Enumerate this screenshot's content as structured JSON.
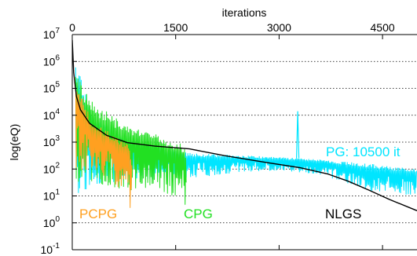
{
  "chart_data": {
    "type": "line",
    "title": "",
    "xlabel": "iterations",
    "ylabel": "log(eQ)",
    "xlim": [
      0,
      5000
    ],
    "x_axis_position": "top",
    "xticks": [
      0,
      1500,
      3000,
      4500
    ],
    "xtick_labels": [
      "0",
      "1500",
      "3000",
      "4500"
    ],
    "ylim_log10": [
      -1,
      7
    ],
    "y_scale": "log",
    "yticks": [
      {
        "base": "10",
        "exp": "7"
      },
      {
        "base": "10",
        "exp": "6"
      },
      {
        "base": "10",
        "exp": "5"
      },
      {
        "base": "10",
        "exp": "4"
      },
      {
        "base": "10",
        "exp": "3"
      },
      {
        "base": "10",
        "exp": "2"
      },
      {
        "base": "10",
        "exp": "1"
      },
      {
        "base": "10",
        "exp": "0"
      },
      {
        "base": "10",
        "exp": "-1"
      }
    ],
    "grid": "horizontal dotted",
    "series": [
      {
        "name": "PG: 10500 it",
        "color": "#00e5ff",
        "style": "noisy band",
        "low": [
          [
            50,
            1.0
          ],
          [
            300,
            1.4
          ],
          [
            800,
            1.6
          ],
          [
            1700,
            1.65
          ],
          [
            2500,
            1.9
          ],
          [
            3000,
            1.95
          ],
          [
            3600,
            1.8
          ],
          [
            4300,
            1.2
          ],
          [
            5000,
            1.0
          ]
        ],
        "high": [
          [
            50,
            6.0
          ],
          [
            300,
            4.0
          ],
          [
            800,
            3.1
          ],
          [
            1700,
            2.6
          ],
          [
            2500,
            2.5
          ],
          [
            3000,
            2.45
          ],
          [
            3600,
            2.35
          ],
          [
            4300,
            2.2
          ],
          [
            5000,
            2.0
          ]
        ],
        "spikes": [
          [
            3270,
            4.15
          ]
        ]
      },
      {
        "name": "CPG",
        "color": "#22e022",
        "style": "noisy band",
        "low": [
          [
            50,
            1.5
          ],
          [
            300,
            1.5
          ],
          [
            800,
            1.2
          ],
          [
            1200,
            1.3
          ],
          [
            1620,
            0.8
          ],
          [
            1660,
            0.0
          ]
        ],
        "high": [
          [
            50,
            5.5
          ],
          [
            300,
            4.5
          ],
          [
            800,
            3.6
          ],
          [
            1200,
            3.3
          ],
          [
            1620,
            2.9
          ],
          [
            1660,
            2.7
          ]
        ]
      },
      {
        "name": "PCPG",
        "color": "#ffa020",
        "style": "noisy band",
        "low": [
          [
            50,
            1.8
          ],
          [
            300,
            2.0
          ],
          [
            600,
            1.5
          ],
          [
            820,
            0.9
          ],
          [
            870,
            0.0
          ]
        ],
        "high": [
          [
            50,
            5.2
          ],
          [
            300,
            3.7
          ],
          [
            600,
            3.3
          ],
          [
            820,
            2.9
          ],
          [
            870,
            2.4
          ]
        ]
      },
      {
        "name": "NLGS",
        "color": "#000000",
        "style": "line",
        "points": [
          [
            0,
            6.8
          ],
          [
            20,
            5.6
          ],
          [
            60,
            4.7
          ],
          [
            120,
            4.2
          ],
          [
            250,
            3.7
          ],
          [
            500,
            3.25
          ],
          [
            800,
            2.98
          ],
          [
            1200,
            2.85
          ],
          [
            1700,
            2.75
          ],
          [
            2200,
            2.5
          ],
          [
            2800,
            2.25
          ],
          [
            3300,
            2.05
          ],
          [
            3700,
            1.82
          ],
          [
            4000,
            1.55
          ],
          [
            4300,
            1.22
          ],
          [
            4600,
            0.87
          ],
          [
            5000,
            0.45
          ]
        ]
      }
    ],
    "annotations": [
      {
        "text": "PCPG",
        "color": "#ffa020"
      },
      {
        "text": "CPG",
        "color": "#22e022"
      },
      {
        "text": "PG: 10500 it",
        "color": "#00e5ff"
      },
      {
        "text": "NLGS",
        "color": "#000000"
      }
    ]
  }
}
